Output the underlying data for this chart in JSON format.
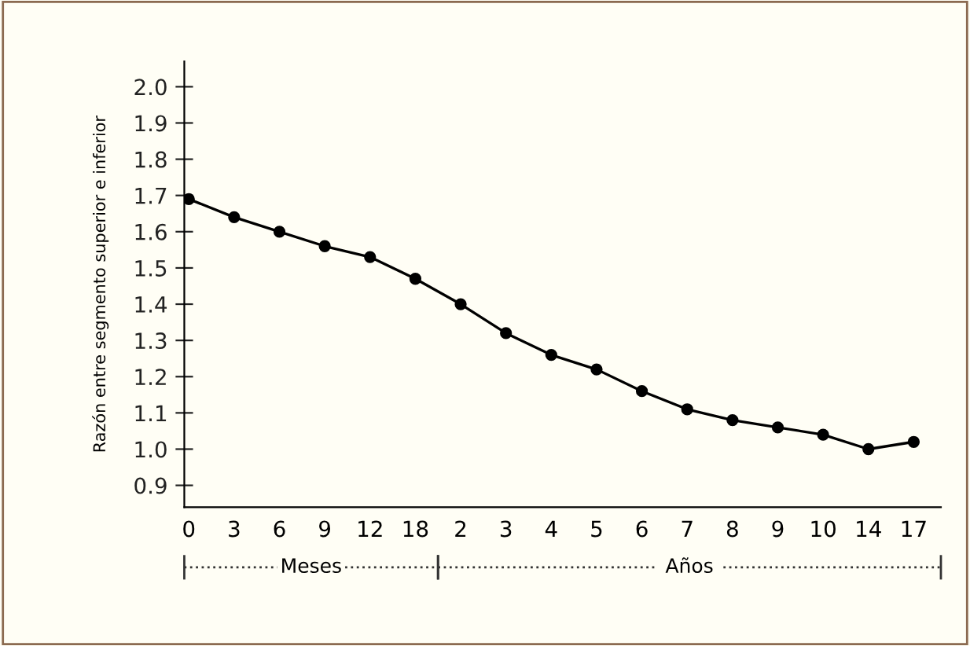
{
  "chart_data": {
    "type": "line",
    "ylabel": "Razón entre segmento superior e inferior",
    "categories": [
      "0",
      "3",
      "6",
      "9",
      "12",
      "18",
      "2",
      "3",
      "4",
      "5",
      "6",
      "7",
      "8",
      "9",
      "10",
      "14",
      "17"
    ],
    "series": [
      {
        "color": "#000000",
        "values": [
          1.69,
          1.64,
          1.6,
          1.56,
          1.53,
          1.47,
          1.4,
          1.32,
          1.26,
          1.22,
          1.16,
          1.11,
          1.08,
          1.06,
          1.04,
          1.0,
          1.02
        ]
      }
    ],
    "ylim": [
      0.84,
      2.07
    ],
    "yticks": [
      0.9,
      {
        "value": 1,
        "label": "1.0"
      },
      1.1,
      1.2,
      1.3,
      1.4,
      1.5,
      1.6,
      1.7,
      1.8,
      1.9,
      {
        "value": 2,
        "label": "2.0"
      }
    ],
    "annotations": [
      "Meses",
      "Años"
    ],
    "marker": "circle",
    "line_style": "solid",
    "grid": false,
    "legend": false
  }
}
